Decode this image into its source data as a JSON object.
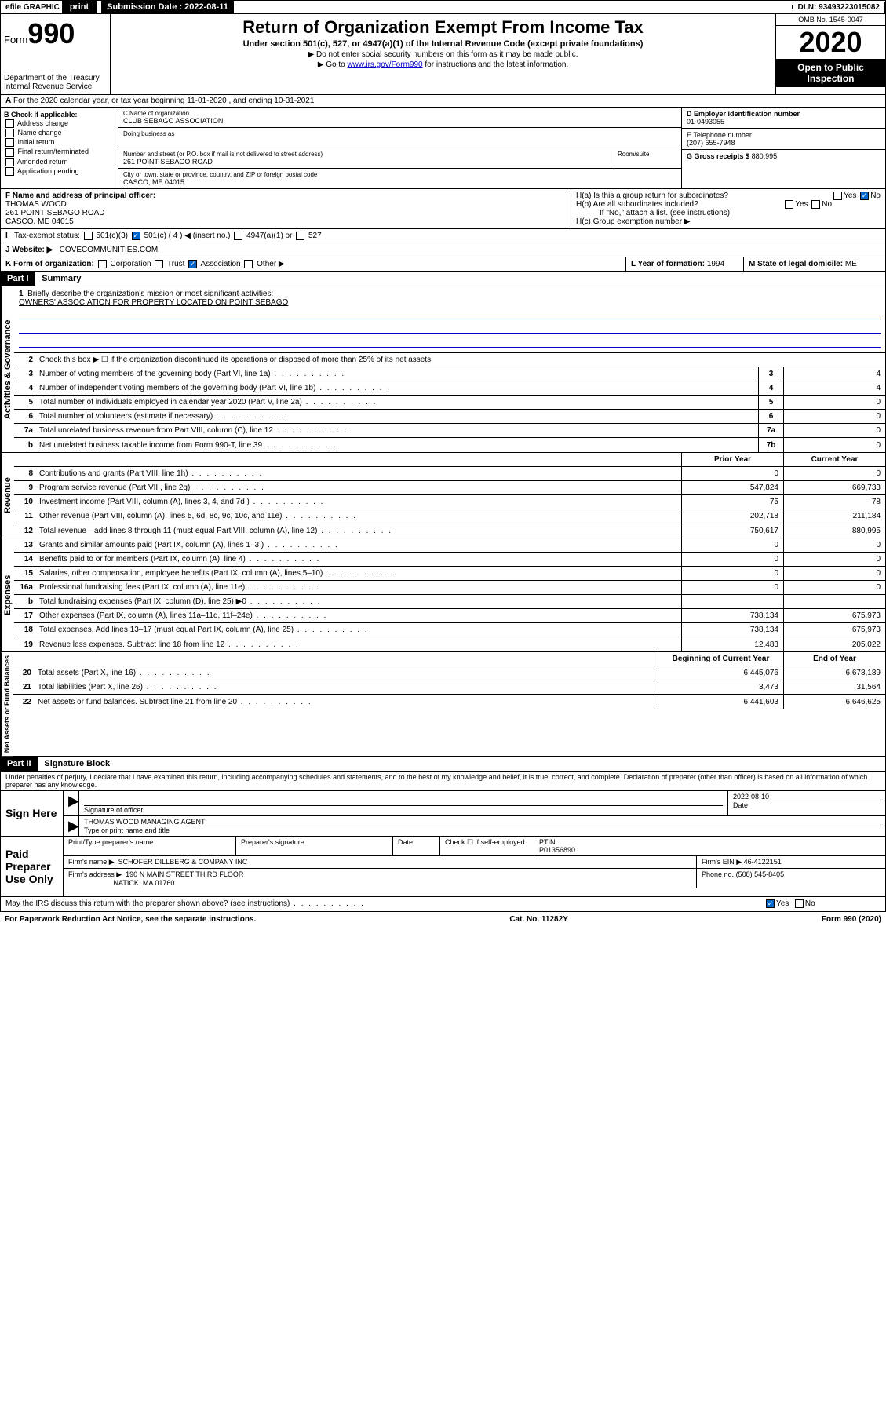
{
  "topbar": {
    "efile": "efile GRAPHIC",
    "print": "print",
    "subdate_label": "Submission Date : 2022-08-11",
    "dln_label": "DLN: 93493223015082"
  },
  "header": {
    "form_word": "Form",
    "form_num": "990",
    "dept1": "Department of the Treasury",
    "dept2": "Internal Revenue Service",
    "title": "Return of Organization Exempt From Income Tax",
    "subtitle": "Under section 501(c), 527, or 4947(a)(1) of the Internal Revenue Code (except private foundations)",
    "note1": "▶ Do not enter social security numbers on this form as it may be made public.",
    "note2_pre": "▶ Go to ",
    "note2_link": "www.irs.gov/Form990",
    "note2_post": " for instructions and the latest information.",
    "omb": "OMB No. 1545-0047",
    "year": "2020",
    "inspect1": "Open to Public",
    "inspect2": "Inspection"
  },
  "rowA": "For the 2020 calendar year, or tax year beginning 11-01-2020    , and ending 10-31-2021",
  "colB": {
    "header": "B Check if applicable:",
    "opts": [
      "Address change",
      "Name change",
      "Initial return",
      "Final return/terminated",
      "Amended return",
      "Application pending"
    ]
  },
  "colC": {
    "name_label": "C Name of organization",
    "name": "CLUB SEBAGO ASSOCIATION",
    "dba_label": "Doing business as",
    "dba": "",
    "street_label": "Number and street (or P.O. box if mail is not delivered to street address)",
    "room_label": "Room/suite",
    "street": "261 POINT SEBAGO ROAD",
    "city_label": "City or town, state or province, country, and ZIP or foreign postal code",
    "city": "CASCO, ME  04015"
  },
  "colD": {
    "ein_label": "D Employer identification number",
    "ein": "01-0493055",
    "phone_label": "E Telephone number",
    "phone": "(207) 655-7948",
    "gross_label": "G Gross receipts $",
    "gross": "880,995"
  },
  "rowF": {
    "label": "F  Name and address of principal officer:",
    "name": "THOMAS WOOD",
    "addr1": "261 POINT SEBAGO ROAD",
    "addr2": "CASCO, ME  04015"
  },
  "rowH": {
    "ha": "H(a)  Is this a group return for subordinates?",
    "hb": "H(b)  Are all subordinates included?",
    "hb_note": "If \"No,\" attach a list. (see instructions)",
    "hc": "H(c)  Group exemption number ▶",
    "yes": "Yes",
    "no": "No"
  },
  "rowI": {
    "label": "Tax-exempt status:",
    "o1": "501(c)(3)",
    "o2": "501(c) ( 4 ) ◀ (insert no.)",
    "o3": "4947(a)(1) or",
    "o4": "527"
  },
  "rowJ": {
    "label": "J   Website: ▶",
    "val": "COVECOMMUNITIES.COM"
  },
  "rowK": {
    "label": "K Form of organization:",
    "o1": "Corporation",
    "o2": "Trust",
    "o3": "Association",
    "o4": "Other ▶",
    "l_label": "L Year of formation:",
    "l_val": "1994",
    "m_label": "M State of legal domicile:",
    "m_val": "ME"
  },
  "part1": {
    "header": "Part I",
    "title": "Summary"
  },
  "summary": {
    "l1_label": "Briefly describe the organization's mission or most significant activities:",
    "l1_val": "OWNERS' ASSOCIATION FOR PROPERTY LOCATED ON POINT SEBAGO",
    "l2": "Check this box ▶ ☐  if the organization discontinued its operations or disposed of more than 25% of its net assets.",
    "lines_gov": [
      {
        "n": "3",
        "t": "Number of voting members of the governing body (Part VI, line 1a)",
        "b": "3",
        "v": "4"
      },
      {
        "n": "4",
        "t": "Number of independent voting members of the governing body (Part VI, line 1b)",
        "b": "4",
        "v": "4"
      },
      {
        "n": "5",
        "t": "Total number of individuals employed in calendar year 2020 (Part V, line 2a)",
        "b": "5",
        "v": "0"
      },
      {
        "n": "6",
        "t": "Total number of volunteers (estimate if necessary)",
        "b": "6",
        "v": "0"
      },
      {
        "n": "7a",
        "t": "Total unrelated business revenue from Part VIII, column (C), line 12",
        "b": "7a",
        "v": "0"
      },
      {
        "n": "b",
        "t": "Net unrelated business taxable income from Form 990-T, line 39",
        "b": "7b",
        "v": "0"
      }
    ],
    "head_prior": "Prior Year",
    "head_current": "Current Year",
    "lines_rev": [
      {
        "n": "8",
        "t": "Contributions and grants (Part VIII, line 1h)",
        "p": "0",
        "c": "0"
      },
      {
        "n": "9",
        "t": "Program service revenue (Part VIII, line 2g)",
        "p": "547,824",
        "c": "669,733"
      },
      {
        "n": "10",
        "t": "Investment income (Part VIII, column (A), lines 3, 4, and 7d )",
        "p": "75",
        "c": "78"
      },
      {
        "n": "11",
        "t": "Other revenue (Part VIII, column (A), lines 5, 6d, 8c, 9c, 10c, and 11e)",
        "p": "202,718",
        "c": "211,184"
      },
      {
        "n": "12",
        "t": "Total revenue—add lines 8 through 11 (must equal Part VIII, column (A), line 12)",
        "p": "750,617",
        "c": "880,995"
      }
    ],
    "lines_exp": [
      {
        "n": "13",
        "t": "Grants and similar amounts paid (Part IX, column (A), lines 1–3 )",
        "p": "0",
        "c": "0"
      },
      {
        "n": "14",
        "t": "Benefits paid to or for members (Part IX, column (A), line 4)",
        "p": "0",
        "c": "0"
      },
      {
        "n": "15",
        "t": "Salaries, other compensation, employee benefits (Part IX, column (A), lines 5–10)",
        "p": "0",
        "c": "0"
      },
      {
        "n": "16a",
        "t": "Professional fundraising fees (Part IX, column (A), line 11e)",
        "p": "0",
        "c": "0"
      },
      {
        "n": "b",
        "t": "Total fundraising expenses (Part IX, column (D), line 25) ▶0",
        "p": "",
        "c": ""
      },
      {
        "n": "17",
        "t": "Other expenses (Part IX, column (A), lines 11a–11d, 11f–24e)",
        "p": "738,134",
        "c": "675,973"
      },
      {
        "n": "18",
        "t": "Total expenses. Add lines 13–17 (must equal Part IX, column (A), line 25)",
        "p": "738,134",
        "c": "675,973"
      },
      {
        "n": "19",
        "t": "Revenue less expenses. Subtract line 18 from line 12",
        "p": "12,483",
        "c": "205,022"
      }
    ],
    "head_begin": "Beginning of Current Year",
    "head_end": "End of Year",
    "lines_net": [
      {
        "n": "20",
        "t": "Total assets (Part X, line 16)",
        "p": "6,445,076",
        "c": "6,678,189"
      },
      {
        "n": "21",
        "t": "Total liabilities (Part X, line 26)",
        "p": "3,473",
        "c": "31,564"
      },
      {
        "n": "22",
        "t": "Net assets or fund balances. Subtract line 21 from line 20",
        "p": "6,441,603",
        "c": "6,646,625"
      }
    ],
    "vlabels": {
      "gov": "Activities & Governance",
      "rev": "Revenue",
      "exp": "Expenses",
      "net": "Net Assets or Fund Balances"
    }
  },
  "part2": {
    "header": "Part II",
    "title": "Signature Block"
  },
  "perjury": "Under penalties of perjury, I declare that I have examined this return, including accompanying schedules and statements, and to the best of my knowledge and belief, it is true, correct, and complete. Declaration of preparer (other than officer) is based on all information of which preparer has any knowledge.",
  "sign": {
    "label": "Sign Here",
    "sig_label": "Signature of officer",
    "date_label": "Date",
    "date": "2022-08-10",
    "name": "THOMAS WOOD  MANAGING AGENT",
    "name_label": "Type or print name and title"
  },
  "preparer": {
    "label": "Paid Preparer Use Only",
    "print_label": "Print/Type preparer's name",
    "sig_label": "Preparer's signature",
    "date_label": "Date",
    "check_label": "Check ☐ if self-employed",
    "ptin_label": "PTIN",
    "ptin": "P01356890",
    "firm_name_label": "Firm's name    ▶",
    "firm_name": "SCHOFER DILLBERG & COMPANY INC",
    "firm_ein_label": "Firm's EIN ▶",
    "firm_ein": "46-4122151",
    "firm_addr_label": "Firm's address ▶",
    "firm_addr1": "190 N MAIN STREET THIRD FLOOR",
    "firm_addr2": "NATICK, MA  01760",
    "phone_label": "Phone no.",
    "phone": "(508) 545-8405"
  },
  "discuss": {
    "text": "May the IRS discuss this return with the preparer shown above? (see instructions)",
    "yes": "Yes",
    "no": "No"
  },
  "footer": {
    "left": "For Paperwork Reduction Act Notice, see the separate instructions.",
    "mid": "Cat. No. 11282Y",
    "right": "Form 990 (2020)"
  }
}
